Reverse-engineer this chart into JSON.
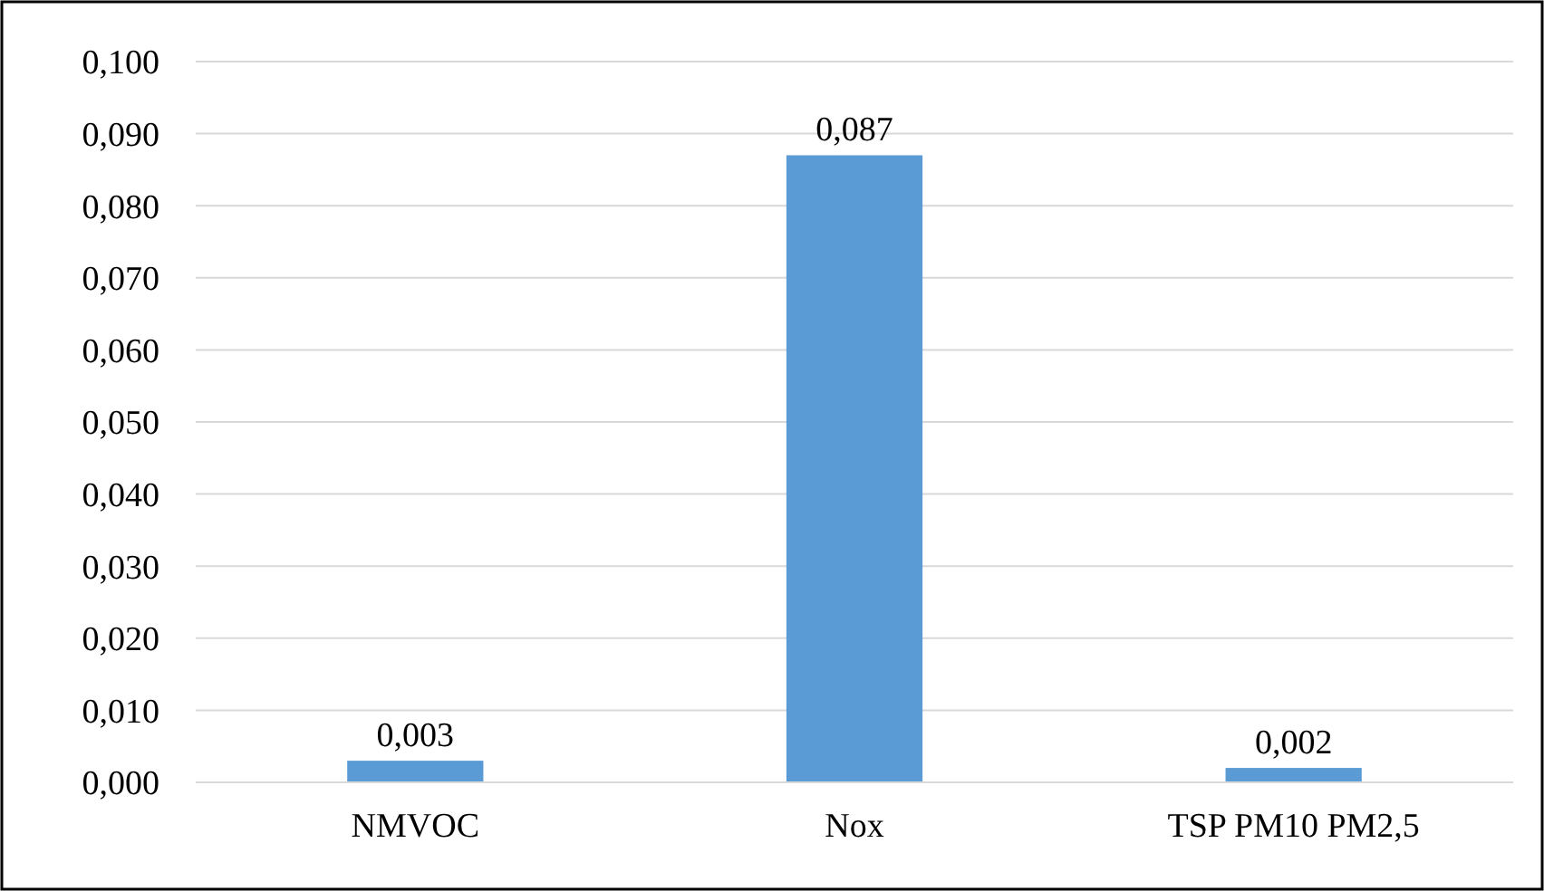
{
  "chart_data": {
    "type": "bar",
    "categories": [
      "NMVOC",
      "Nox",
      "TSP PM10 PM2,5"
    ],
    "values": [
      0.003,
      0.087,
      0.002
    ],
    "value_labels": [
      "0,003",
      "0,087",
      "0,002"
    ],
    "color": "#5b9bd5",
    "ylim": [
      0,
      0.1
    ],
    "yticks": [
      {
        "value": 0,
        "label": "0,000"
      },
      {
        "value": 0.01,
        "label": "0,010"
      },
      {
        "value": 0.02,
        "label": "0,020"
      },
      {
        "value": 0.03,
        "label": "0,030"
      },
      {
        "value": 0.04,
        "label": "0,040"
      },
      {
        "value": 0.05,
        "label": "0,050"
      },
      {
        "value": 0.06,
        "label": "0,060"
      },
      {
        "value": 0.07,
        "label": "0,070"
      },
      {
        "value": 0.08,
        "label": "0,080"
      },
      {
        "value": 0.09,
        "label": "0,090"
      },
      {
        "value": 0.1,
        "label": "0,100"
      }
    ],
    "grid": "y"
  }
}
